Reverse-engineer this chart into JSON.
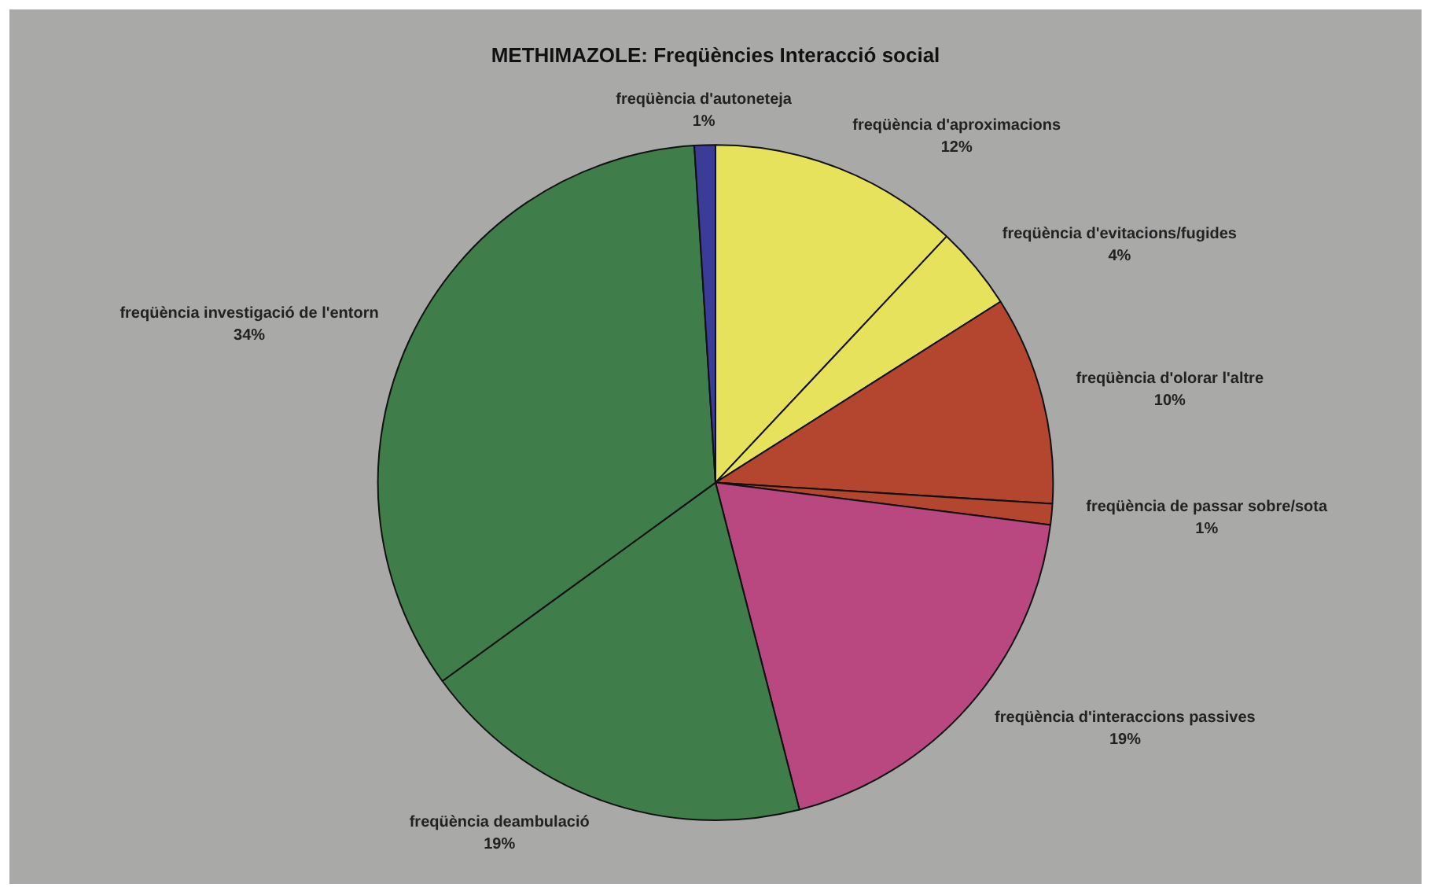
{
  "chart_data": {
    "type": "pie",
    "title": "METHIMAZOLE: Freqüències Interacció social",
    "categories": [
      "freqüència d'aproximacions",
      "freqüència d'evitacions/fugides",
      "freqüència d'olorar l'altre",
      "freqüència de passar sobre/sota",
      "freqüència d'interaccions passives",
      "freqüència deambulació",
      "freqüència investigació de l'entorn",
      "freqüència d'autoneteja"
    ],
    "values": [
      12,
      4,
      10,
      1,
      19,
      19,
      34,
      1
    ],
    "value_labels": [
      "12%",
      "4%",
      "10%",
      "1%",
      "19%",
      "19%",
      "34%",
      "1%"
    ],
    "colors": [
      "#e6e25c",
      "#e6e25c",
      "#b4462f",
      "#b4462f",
      "#b8487f",
      "#3f7d4b",
      "#3f7d4b",
      "#3a3c98"
    ],
    "legend": false
  }
}
